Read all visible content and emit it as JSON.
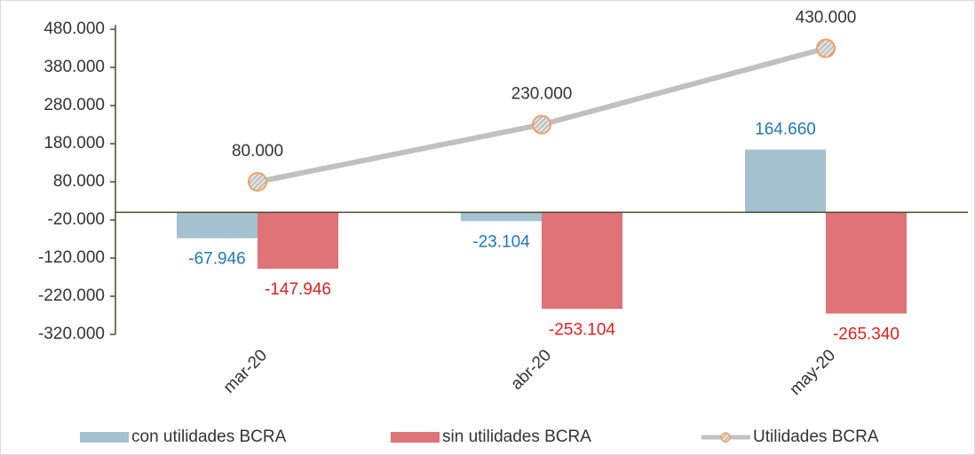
{
  "chart_data": {
    "type": "bar",
    "categories": [
      "mar-20",
      "abr-20",
      "may-20"
    ],
    "series": [
      {
        "name": "con utilidades BCRA",
        "type": "bar",
        "color": "#a3c1cf",
        "label_color": "#1f78b4",
        "values": [
          -67946,
          -23104,
          164660
        ],
        "value_labels": [
          "-67.946",
          "-23.104",
          "164.660"
        ]
      },
      {
        "name": "sin utilidades BCRA",
        "type": "bar",
        "color": "#e07377",
        "label_color": "#e02020",
        "values": [
          -147946,
          -253104,
          -265340
        ],
        "value_labels": [
          "-147.946",
          "-253.104",
          "-265.340"
        ]
      },
      {
        "name": "Utilidades BCRA",
        "type": "line",
        "color": "#c0c0c0",
        "marker_color": "#f0a060",
        "label_color": "#333333",
        "values": [
          80000,
          230000,
          430000
        ],
        "value_labels": [
          "80.000",
          "230.000",
          "430.000"
        ]
      }
    ],
    "ylim": [
      -320000,
      480000
    ],
    "yticks": [
      {
        "value": 480000,
        "label": "480.000"
      },
      {
        "value": 380000,
        "label": "380.000"
      },
      {
        "value": 280000,
        "label": "280.000"
      },
      {
        "value": 180000,
        "label": "180.000"
      },
      {
        "value": 80000,
        "label": "80.000"
      },
      {
        "value": -20000,
        "label": "-20.000"
      },
      {
        "value": -120000,
        "label": "-120.000"
      },
      {
        "value": -220000,
        "label": "-220.000"
      },
      {
        "value": -320000,
        "label": "-320.000"
      }
    ],
    "legend": "bottom"
  }
}
